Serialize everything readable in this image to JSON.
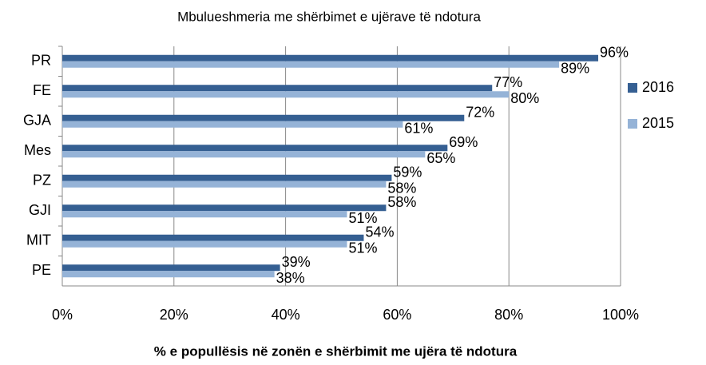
{
  "chart_data": {
    "type": "bar",
    "orientation": "horizontal",
    "title": "Mbulueshmeria me shërbimet e ujërave të ndotura",
    "x_label": "% e popullësis në zonën e shërbimit me ujëra të ndotura",
    "categories": [
      "PR",
      "FE",
      "GJA",
      "Mes",
      "PZ",
      "GJI",
      "MIT",
      "PE"
    ],
    "series": [
      {
        "name": "2016",
        "color": "#355f92",
        "values": [
          96,
          77,
          72,
          69,
          59,
          58,
          54,
          39
        ],
        "value_labels": [
          "96%",
          "77%",
          "72%",
          "69%",
          "59%",
          "58%",
          "54%",
          "39%"
        ]
      },
      {
        "name": "2015",
        "color": "#95b3d7",
        "values": [
          89,
          80,
          61,
          65,
          58,
          51,
          51,
          38
        ],
        "value_labels": [
          "89%",
          "80%",
          "61%",
          "65%",
          "58%",
          "51%",
          "51%",
          "38%"
        ]
      }
    ],
    "xlim": [
      0,
      100
    ],
    "xticks": [
      {
        "value": 0,
        "label": "0%"
      },
      {
        "value": 20,
        "label": "20%"
      },
      {
        "value": 40,
        "label": "40%"
      },
      {
        "value": 60,
        "label": "60%"
      },
      {
        "value": 80,
        "label": "80%"
      },
      {
        "value": 100,
        "label": "100%"
      }
    ],
    "grid": true,
    "legend": "right"
  }
}
